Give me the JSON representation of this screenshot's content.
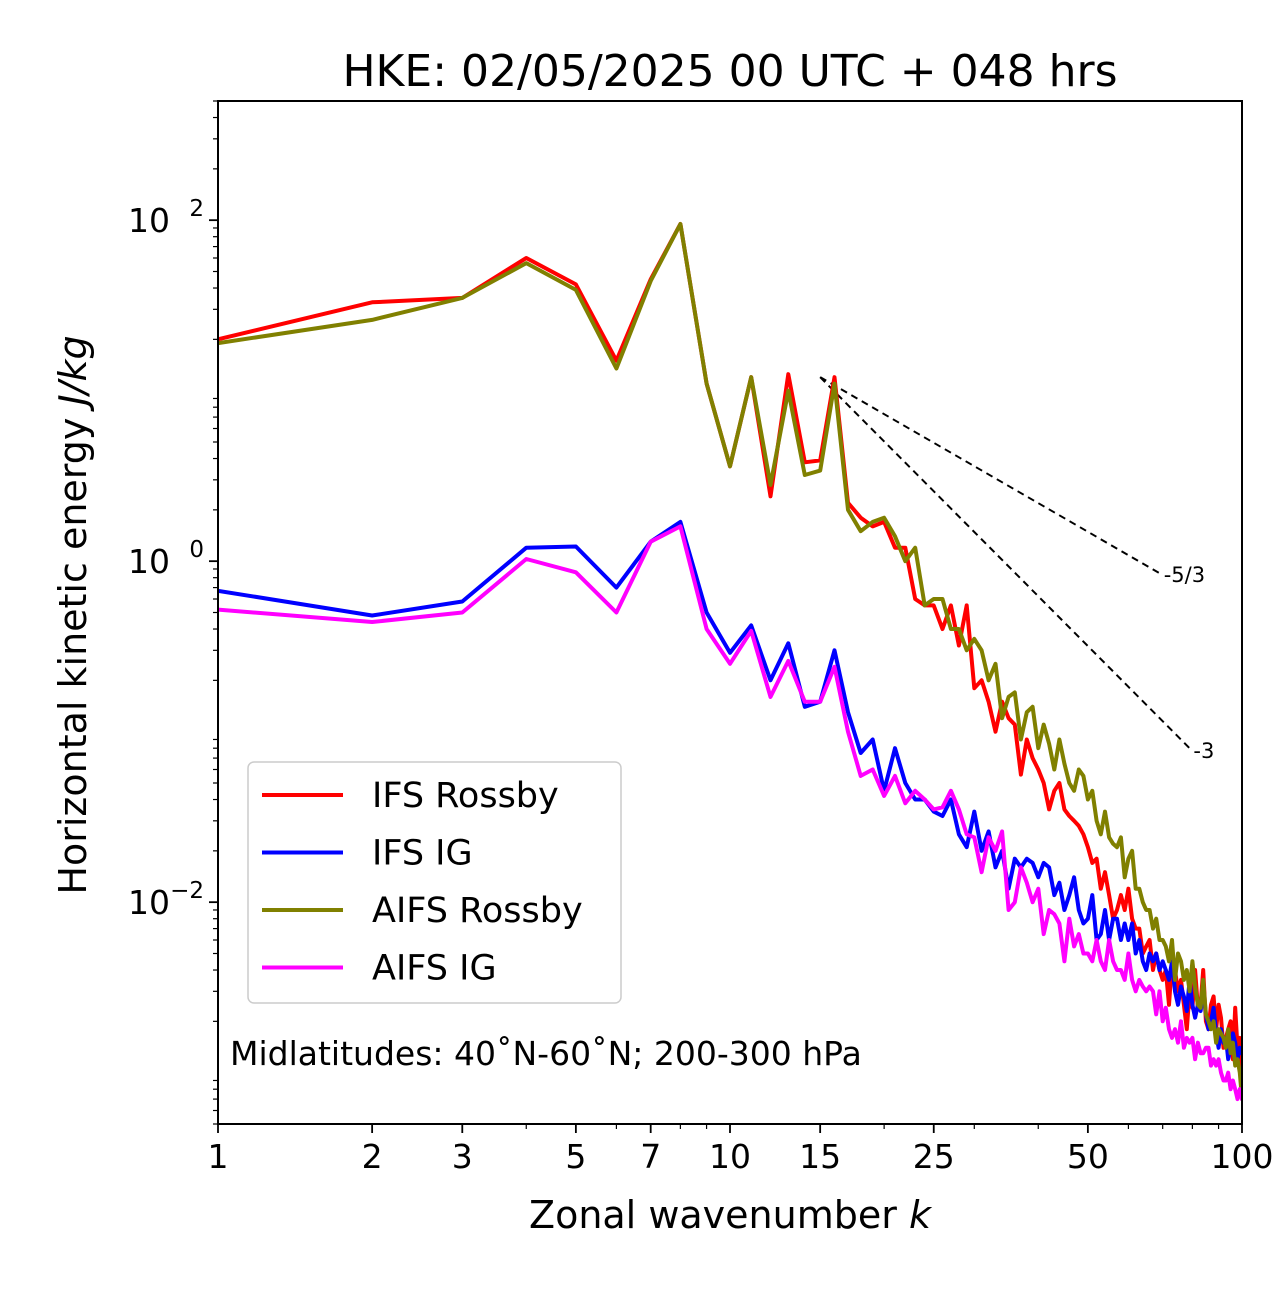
{
  "chart_data": {
    "type": "line",
    "title": "HKE: 02/05/2025 00 UTC + 048 hrs",
    "xlabel_text": "Zonal wavenumber ",
    "xlabel_var": "k",
    "ylabel_text": "Horizontal kinetic energy ",
    "ylabel_unit": "J/kg",
    "xscale": "log",
    "yscale": "log",
    "xlim": [
      1,
      100
    ],
    "ylim": [
      0.0005,
      500
    ],
    "x_ticks": [
      1,
      2,
      3,
      5,
      7,
      10,
      15,
      25,
      50,
      100
    ],
    "x_tick_labels": [
      "1",
      "2",
      "3",
      "5",
      "7",
      "10",
      "15",
      "25",
      "50",
      "100"
    ],
    "y_ticks": [
      {
        "value": 0.01,
        "base": "10",
        "exp": "−2"
      },
      {
        "value": 1,
        "base": "10",
        "exp": "0"
      },
      {
        "value": 100,
        "base": "10",
        "exp": "2"
      }
    ],
    "annotation": "Midlatitudes: 40˚N-60˚N; 200-300 hPa",
    "legend_position": "lower-left",
    "series": [
      {
        "name": "IFS Rossby",
        "color": "#ff0000",
        "x": [
          1,
          2,
          3,
          4,
          5,
          6,
          7,
          8,
          9,
          10,
          11,
          12,
          13,
          14,
          15,
          16,
          17,
          18,
          19,
          20,
          21,
          22,
          23,
          24,
          25,
          26,
          27,
          28,
          29,
          30,
          31,
          32,
          33,
          34,
          35,
          36,
          37,
          38,
          39,
          40,
          41,
          42,
          43,
          44,
          45,
          46,
          47,
          48,
          49,
          50,
          51,
          52,
          53,
          54,
          55,
          56,
          57,
          58,
          59,
          60,
          61,
          62,
          63,
          64,
          65,
          66,
          67,
          68,
          69,
          70,
          71,
          72,
          73,
          74,
          75,
          76,
          77,
          78,
          79,
          80,
          81,
          82,
          83,
          84,
          85,
          86,
          87,
          88,
          89,
          90,
          91,
          92,
          93,
          94,
          95,
          96,
          97,
          98,
          99,
          100
        ],
        "y": [
          20,
          33,
          35,
          60,
          42,
          15,
          45,
          95,
          11,
          3.6,
          12,
          2.4,
          12.5,
          3.8,
          3.9,
          12,
          2.2,
          1.8,
          1.6,
          1.7,
          1.2,
          1.2,
          0.6,
          0.55,
          0.55,
          0.4,
          0.55,
          0.32,
          0.55,
          0.18,
          0.2,
          0.15,
          0.1,
          0.15,
          0.12,
          0.11,
          0.056,
          0.09,
          0.07,
          0.06,
          0.05,
          0.035,
          0.045,
          0.05,
          0.035,
          0.032,
          0.03,
          0.028,
          0.025,
          0.021,
          0.017,
          0.018,
          0.012,
          0.015,
          0.011,
          0.008,
          0.009,
          0.011,
          0.009,
          0.012,
          0.008,
          0.007,
          0.007,
          0.005,
          0.0055,
          0.006,
          0.004,
          0.005,
          0.004,
          0.0035,
          0.004,
          0.0025,
          0.0045,
          0.004,
          0.003,
          0.0035,
          0.0025,
          0.0018,
          0.003,
          0.0024,
          0.004,
          0.0024,
          0.0025,
          0.004,
          0.002,
          0.0018,
          0.0025,
          0.0028,
          0.0018,
          0.0025,
          0.0021,
          0.0014,
          0.0016,
          0.0018,
          0.002,
          0.0012,
          0.0024,
          0.0014,
          0.0016,
          0.001
        ]
      },
      {
        "name": "IFS IG",
        "color": "#0000ff",
        "x": [
          1,
          2,
          3,
          4,
          5,
          6,
          7,
          8,
          9,
          10,
          11,
          12,
          13,
          14,
          15,
          16,
          17,
          18,
          19,
          20,
          21,
          22,
          23,
          24,
          25,
          26,
          27,
          28,
          29,
          30,
          31,
          32,
          33,
          34,
          35,
          36,
          37,
          38,
          39,
          40,
          41,
          42,
          43,
          44,
          45,
          46,
          47,
          48,
          49,
          50,
          51,
          52,
          53,
          54,
          55,
          56,
          57,
          58,
          59,
          60,
          61,
          62,
          63,
          64,
          65,
          66,
          67,
          68,
          69,
          70,
          71,
          72,
          73,
          74,
          75,
          76,
          77,
          78,
          79,
          80,
          81,
          82,
          83,
          84,
          85,
          86,
          87,
          88,
          89,
          90,
          91,
          92,
          93,
          94,
          95,
          96,
          97,
          98,
          99,
          100
        ],
        "y": [
          0.67,
          0.48,
          0.58,
          1.2,
          1.22,
          0.7,
          1.3,
          1.7,
          0.5,
          0.29,
          0.42,
          0.2,
          0.33,
          0.14,
          0.15,
          0.3,
          0.13,
          0.075,
          0.09,
          0.045,
          0.08,
          0.05,
          0.04,
          0.04,
          0.034,
          0.032,
          0.04,
          0.025,
          0.021,
          0.034,
          0.02,
          0.026,
          0.016,
          0.02,
          0.012,
          0.018,
          0.016,
          0.018,
          0.017,
          0.014,
          0.017,
          0.016,
          0.011,
          0.013,
          0.009,
          0.011,
          0.014,
          0.009,
          0.0075,
          0.008,
          0.011,
          0.006,
          0.0065,
          0.009,
          0.006,
          0.008,
          0.008,
          0.006,
          0.0075,
          0.006,
          0.0075,
          0.005,
          0.006,
          0.0045,
          0.004,
          0.005,
          0.0045,
          0.005,
          0.004,
          0.0045,
          0.004,
          0.0035,
          0.0045,
          0.003,
          0.0025,
          0.0032,
          0.0028,
          0.0023,
          0.0035,
          0.0025,
          0.0021,
          0.0025,
          0.0023,
          0.003,
          0.0022,
          0.0018,
          0.002,
          0.0024,
          0.0017,
          0.0014,
          0.0018,
          0.0015,
          0.0016,
          0.0012,
          0.0014,
          0.0017,
          0.0015,
          0.0012,
          0.0014,
          0.0013
        ]
      },
      {
        "name": "AIFS Rossby",
        "color": "#808000",
        "x": [
          1,
          2,
          3,
          4,
          5,
          6,
          7,
          8,
          9,
          10,
          11,
          12,
          13,
          14,
          15,
          16,
          17,
          18,
          19,
          20,
          21,
          22,
          23,
          24,
          25,
          26,
          27,
          28,
          29,
          30,
          31,
          32,
          33,
          34,
          35,
          36,
          37,
          38,
          39,
          40,
          41,
          42,
          43,
          44,
          45,
          46,
          47,
          48,
          49,
          50,
          51,
          52,
          53,
          54,
          55,
          56,
          57,
          58,
          59,
          60,
          61,
          62,
          63,
          64,
          65,
          66,
          67,
          68,
          69,
          70,
          71,
          72,
          73,
          74,
          75,
          76,
          77,
          78,
          79,
          80,
          81,
          82,
          83,
          84,
          85,
          86,
          87,
          88,
          89,
          90,
          91,
          92,
          93,
          94,
          95,
          96,
          97,
          98,
          99,
          100
        ],
        "y": [
          19,
          26,
          35,
          56,
          39,
          13.5,
          44,
          95,
          11,
          3.6,
          12,
          2.8,
          10,
          3.2,
          3.4,
          11,
          2.0,
          1.5,
          1.7,
          1.8,
          1.4,
          1.0,
          1.2,
          0.55,
          0.6,
          0.6,
          0.4,
          0.4,
          0.3,
          0.35,
          0.3,
          0.2,
          0.25,
          0.12,
          0.16,
          0.17,
          0.09,
          0.13,
          0.14,
          0.08,
          0.11,
          0.085,
          0.06,
          0.09,
          0.065,
          0.05,
          0.045,
          0.06,
          0.055,
          0.04,
          0.045,
          0.03,
          0.025,
          0.034,
          0.024,
          0.022,
          0.021,
          0.024,
          0.014,
          0.018,
          0.02,
          0.012,
          0.012,
          0.01,
          0.009,
          0.009,
          0.007,
          0.008,
          0.006,
          0.006,
          0.0055,
          0.0045,
          0.006,
          0.0035,
          0.005,
          0.0045,
          0.0035,
          0.004,
          0.003,
          0.0045,
          0.0032,
          0.0025,
          0.0024,
          0.0035,
          0.0022,
          0.002,
          0.0018,
          0.002,
          0.0015,
          0.0018,
          0.0017,
          0.0016,
          0.0014,
          0.0018,
          0.0013,
          0.0015,
          0.0011,
          0.0012,
          0.001,
          0.0007
        ]
      },
      {
        "name": "AIFS IG",
        "color": "#ff00ff",
        "x": [
          1,
          2,
          3,
          4,
          5,
          6,
          7,
          8,
          9,
          10,
          11,
          12,
          13,
          14,
          15,
          16,
          17,
          18,
          19,
          20,
          21,
          22,
          23,
          24,
          25,
          26,
          27,
          28,
          29,
          30,
          31,
          32,
          33,
          34,
          35,
          36,
          37,
          38,
          39,
          40,
          41,
          42,
          43,
          44,
          45,
          46,
          47,
          48,
          49,
          50,
          51,
          52,
          53,
          54,
          55,
          56,
          57,
          58,
          59,
          60,
          61,
          62,
          63,
          64,
          65,
          66,
          67,
          68,
          69,
          70,
          71,
          72,
          73,
          74,
          75,
          76,
          77,
          78,
          79,
          80,
          81,
          82,
          83,
          84,
          85,
          86,
          87,
          88,
          89,
          90,
          91,
          92,
          93,
          94,
          95,
          96,
          97,
          98,
          99,
          100
        ],
        "y": [
          0.52,
          0.44,
          0.5,
          1.03,
          0.86,
          0.5,
          1.3,
          1.6,
          0.4,
          0.25,
          0.39,
          0.16,
          0.26,
          0.15,
          0.15,
          0.24,
          0.1,
          0.055,
          0.06,
          0.042,
          0.055,
          0.038,
          0.045,
          0.04,
          0.035,
          0.036,
          0.045,
          0.035,
          0.025,
          0.024,
          0.015,
          0.024,
          0.02,
          0.026,
          0.009,
          0.01,
          0.016,
          0.013,
          0.01,
          0.012,
          0.0065,
          0.009,
          0.0085,
          0.0075,
          0.0045,
          0.008,
          0.0055,
          0.0065,
          0.005,
          0.005,
          0.0045,
          0.006,
          0.0045,
          0.004,
          0.006,
          0.0045,
          0.004,
          0.004,
          0.0035,
          0.005,
          0.0035,
          0.003,
          0.0035,
          0.0032,
          0.003,
          0.0032,
          0.003,
          0.0022,
          0.003,
          0.002,
          0.0024,
          0.0018,
          0.0016,
          0.0018,
          0.0015,
          0.002,
          0.0014,
          0.0016,
          0.0015,
          0.0016,
          0.0012,
          0.0015,
          0.0013,
          0.0013,
          0.0014,
          0.0014,
          0.0011,
          0.0012,
          0.0011,
          0.0012,
          0.001,
          0.0009,
          0.0009,
          0.001,
          0.0008,
          0.0009,
          0.0008,
          0.0007,
          0.0008,
          0.0007
        ]
      }
    ],
    "reference_lines": [
      {
        "label": "-5/3",
        "x": [
          15,
          70
        ],
        "y": [
          12,
          0.83
        ]
      },
      {
        "label": "-3",
        "x": [
          15,
          80
        ],
        "y": [
          12,
          0.077
        ]
      }
    ]
  }
}
